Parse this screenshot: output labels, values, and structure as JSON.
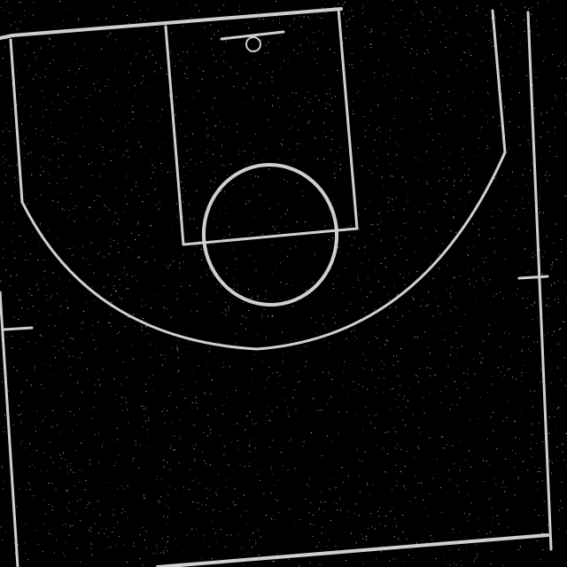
{
  "court": {
    "background_color": "#000000",
    "line_color": "#cfcfcf",
    "noise_color": "#ffffff",
    "elements": [
      "baseline",
      "sideline-left",
      "sideline-right",
      "sideline-right-outer",
      "paint-lane",
      "free-throw-line",
      "free-throw-circle",
      "backboard",
      "hoop",
      "three-point-arc",
      "hash-mark-left",
      "hash-mark-right",
      "bottom-line"
    ]
  }
}
